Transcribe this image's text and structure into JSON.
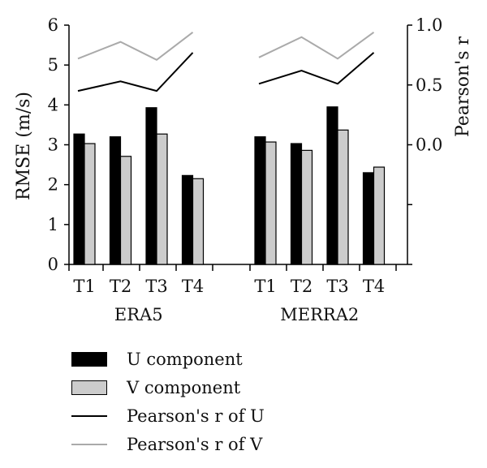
{
  "chart_data": {
    "type": "bar",
    "groups": [
      "ERA5",
      "MERRA2"
    ],
    "categories": [
      "T1",
      "T2",
      "T3",
      "T4"
    ],
    "ylabel": "RMSE (m/s)",
    "y2label": "Pearson's r",
    "ylim": [
      0,
      6
    ],
    "y2lim": [
      -1.0,
      1.0
    ],
    "yticks": [
      "0",
      "1",
      "2",
      "3",
      "4",
      "5",
      "6"
    ],
    "y2ticks": [
      "0.0",
      "0.5",
      "1.0"
    ],
    "series": [
      {
        "name": "U component",
        "type": "bar",
        "axis": "left",
        "color": "#000000",
        "values": {
          "ERA5": [
            3.27,
            3.2,
            3.93,
            2.23
          ],
          "MERRA2": [
            3.2,
            3.03,
            3.95,
            2.3
          ]
        }
      },
      {
        "name": "V component",
        "type": "bar",
        "axis": "left",
        "color": "#cccccc",
        "values": {
          "ERA5": [
            3.03,
            2.71,
            3.27,
            2.15
          ],
          "MERRA2": [
            3.07,
            2.86,
            3.37,
            2.44
          ]
        }
      },
      {
        "name": "Pearson's r of U",
        "type": "line",
        "axis": "right",
        "color": "#000000",
        "values": {
          "ERA5": [
            0.45,
            0.53,
            0.45,
            0.77
          ],
          "MERRA2": [
            0.51,
            0.62,
            0.51,
            0.77
          ]
        }
      },
      {
        "name": "Pearson's r of V",
        "type": "line",
        "axis": "right",
        "color": "#aaaaaa",
        "values": {
          "ERA5": [
            0.72,
            0.86,
            0.71,
            0.94
          ],
          "MERRA2": [
            0.73,
            0.9,
            0.72,
            0.94
          ]
        }
      }
    ],
    "legend": {
      "position": "bottom-left"
    },
    "grid": false
  }
}
